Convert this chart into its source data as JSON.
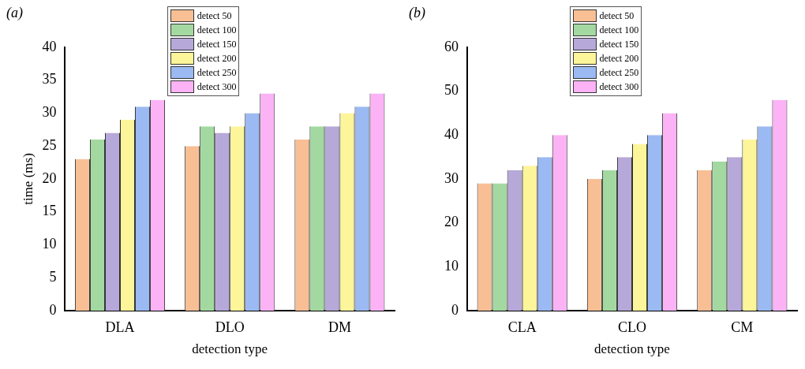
{
  "chart_data": [
    {
      "type": "bar",
      "title": "(a)",
      "xlabel": "detection type",
      "ylabel": "time (ms)",
      "categories": [
        "DLA",
        "DLO",
        "DM"
      ],
      "legend": "top",
      "grid": false,
      "ylim": [
        0,
        40
      ],
      "yticks": [
        0,
        5,
        10,
        15,
        20,
        25,
        30,
        35,
        40
      ],
      "series": [
        {
          "name": "detect 50",
          "color": "#f8bf95",
          "values": [
            23,
            25,
            26
          ]
        },
        {
          "name": "detect 100",
          "color": "#a3d9a0",
          "values": [
            26,
            28,
            28
          ]
        },
        {
          "name": "detect 150",
          "color": "#b6a8d8",
          "values": [
            27,
            27,
            28
          ]
        },
        {
          "name": "detect 200",
          "color": "#fdf59a",
          "values": [
            29,
            28,
            30
          ]
        },
        {
          "name": "detect 250",
          "color": "#9bb9f2",
          "values": [
            31,
            30,
            31
          ]
        },
        {
          "name": "detect 300",
          "color": "#fbb3f6",
          "values": [
            32,
            33,
            33
          ]
        }
      ]
    },
    {
      "type": "bar",
      "title": "(b)",
      "xlabel": "detection type",
      "categories": [
        "CLA",
        "CLO",
        "CM"
      ],
      "legend": "top",
      "grid": false,
      "ylim": [
        0,
        60
      ],
      "yticks": [
        0,
        10,
        20,
        30,
        40,
        50,
        60
      ],
      "series": [
        {
          "name": "detect 50",
          "color": "#f8bf95",
          "values": [
            29,
            30,
            32
          ]
        },
        {
          "name": "detect 100",
          "color": "#a3d9a0",
          "values": [
            29,
            32,
            34
          ]
        },
        {
          "name": "detect 150",
          "color": "#b6a8d8",
          "values": [
            32,
            35,
            35
          ]
        },
        {
          "name": "detect 200",
          "color": "#fdf59a",
          "values": [
            33,
            38,
            39
          ]
        },
        {
          "name": "detect 250",
          "color": "#9bb9f2",
          "values": [
            35,
            40,
            42
          ]
        },
        {
          "name": "detect 300",
          "color": "#fbb3f6",
          "values": [
            40,
            45,
            48
          ]
        }
      ]
    }
  ]
}
